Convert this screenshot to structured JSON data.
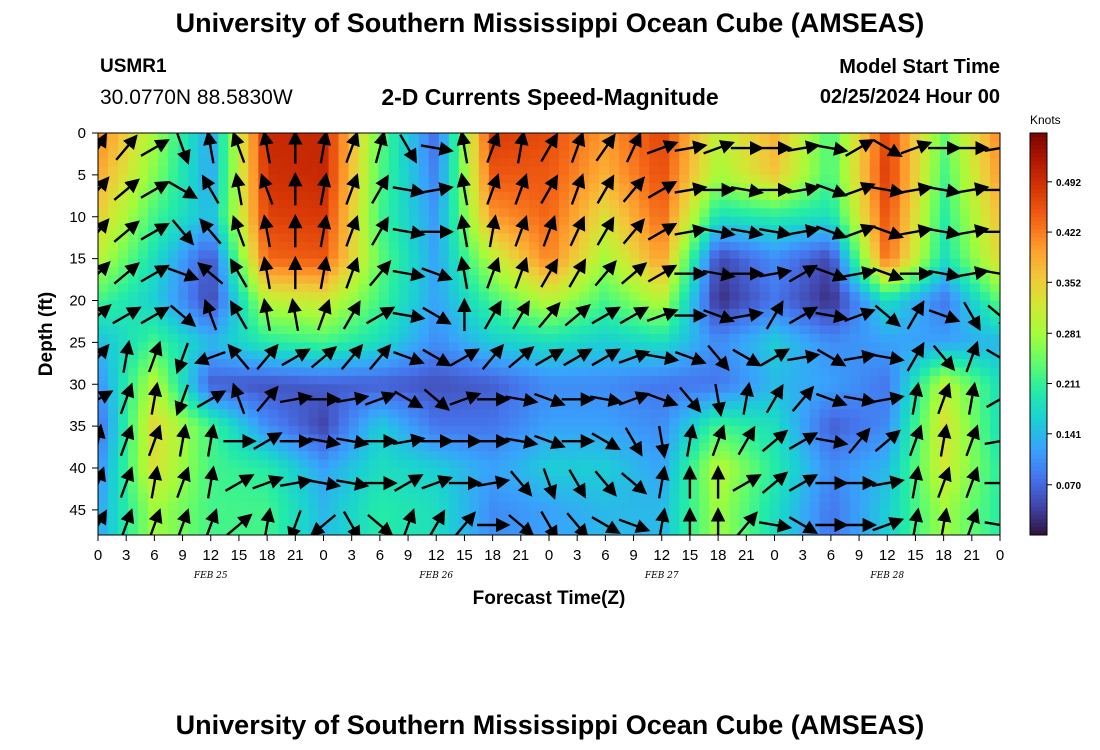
{
  "header": {
    "title": "University of Southern Mississippi Ocean Cube (AMSEAS)",
    "station": "USMR1",
    "coords": "30.0770N  88.5830W",
    "subtitle": "2-D Currents Speed-Magnitude",
    "model_start_label": "Model Start Time",
    "model_start_value": "02/25/2024 Hour 00"
  },
  "footer": {
    "title": "University of Southern Mississippi Ocean Cube (AMSEAS)"
  },
  "chart_data": {
    "type": "heatmap",
    "title": "2-D Currents Speed-Magnitude",
    "xlabel": "Forecast Time(Z)",
    "ylabel": "Depth (ft)",
    "x_tick_labels": [
      "0",
      "3",
      "6",
      "9",
      "12",
      "15",
      "18",
      "21",
      "0",
      "3",
      "6",
      "9",
      "12",
      "15",
      "18",
      "21",
      "0",
      "3",
      "6",
      "9",
      "12",
      "15",
      "18",
      "21",
      "0",
      "3",
      "6",
      "9",
      "12",
      "15",
      "18",
      "21",
      "0"
    ],
    "day_labels": [
      {
        "label": "FEB 25",
        "tick_index": 4
      },
      {
        "label": "FEB 26",
        "tick_index": 12
      },
      {
        "label": "FEB 27",
        "tick_index": 20
      },
      {
        "label": "FEB 28",
        "tick_index": 28
      }
    ],
    "y_ticks": [
      0,
      5,
      10,
      15,
      20,
      25,
      30,
      35,
      40,
      45
    ],
    "ylim": [
      0,
      48
    ],
    "xlim_hours": [
      0,
      96
    ],
    "colorbar": {
      "units": "Knots",
      "ticks": [
        0.07,
        0.141,
        0.211,
        0.281,
        0.352,
        0.422,
        0.492
      ],
      "tick_labels": [
        "0.070",
        "0.141",
        "0.211",
        "0.281",
        "0.352",
        "0.422",
        "0.492"
      ],
      "range": [
        0.0,
        0.56
      ],
      "colors": [
        "#30123b",
        "#4145ab",
        "#4675ed",
        "#39a2fc",
        "#1bcfd4",
        "#24eca6",
        "#61fc6c",
        "#a4fc3b",
        "#d1e834",
        "#f3c63a",
        "#fe9b2d",
        "#f36315",
        "#d93806",
        "#b11901",
        "#7a0402"
      ]
    },
    "depths_ft": [
      0,
      5,
      10,
      15,
      20,
      25,
      30,
      35,
      40,
      45
    ],
    "times_hours": [
      0,
      6,
      12,
      18,
      24,
      30,
      36,
      42,
      48,
      54,
      60,
      66,
      72,
      78,
      84,
      90,
      96
    ],
    "speed_knots": [
      [
        0.42,
        0.28,
        0.12,
        0.5,
        0.5,
        0.24,
        0.07,
        0.48,
        0.46,
        0.4,
        0.47,
        0.3,
        0.38,
        0.22,
        0.47,
        0.24,
        0.42
      ],
      [
        0.39,
        0.26,
        0.12,
        0.49,
        0.5,
        0.23,
        0.09,
        0.45,
        0.45,
        0.38,
        0.46,
        0.28,
        0.36,
        0.22,
        0.48,
        0.22,
        0.4
      ],
      [
        0.35,
        0.22,
        0.14,
        0.47,
        0.48,
        0.22,
        0.11,
        0.4,
        0.44,
        0.33,
        0.44,
        0.18,
        0.2,
        0.18,
        0.46,
        0.2,
        0.37
      ],
      [
        0.3,
        0.18,
        0.05,
        0.44,
        0.45,
        0.24,
        0.12,
        0.3,
        0.42,
        0.28,
        0.4,
        0.04,
        0.1,
        0.04,
        0.44,
        0.18,
        0.34
      ],
      [
        0.22,
        0.16,
        0.04,
        0.3,
        0.32,
        0.22,
        0.12,
        0.22,
        0.3,
        0.22,
        0.3,
        0.02,
        0.08,
        0.02,
        0.18,
        0.08,
        0.24
      ],
      [
        0.14,
        0.22,
        0.14,
        0.2,
        0.22,
        0.18,
        0.1,
        0.16,
        0.18,
        0.16,
        0.18,
        0.1,
        0.16,
        0.1,
        0.12,
        0.12,
        0.14
      ],
      [
        0.1,
        0.3,
        0.06,
        0.05,
        0.06,
        0.06,
        0.05,
        0.06,
        0.1,
        0.1,
        0.08,
        0.08,
        0.14,
        0.12,
        0.08,
        0.3,
        0.18
      ],
      [
        0.07,
        0.34,
        0.22,
        0.1,
        0.04,
        0.16,
        0.08,
        0.08,
        0.12,
        0.12,
        0.1,
        0.22,
        0.18,
        0.06,
        0.1,
        0.33,
        0.18
      ],
      [
        0.1,
        0.33,
        0.22,
        0.2,
        0.12,
        0.18,
        0.16,
        0.12,
        0.16,
        0.16,
        0.12,
        0.3,
        0.2,
        0.1,
        0.14,
        0.32,
        0.2
      ],
      [
        0.12,
        0.28,
        0.22,
        0.22,
        0.14,
        0.2,
        0.18,
        0.1,
        0.12,
        0.14,
        0.14,
        0.28,
        0.18,
        0.08,
        0.16,
        0.28,
        0.2
      ]
    ],
    "vector_times_hours": [
      0,
      3,
      6,
      9,
      12,
      15,
      18,
      21,
      24,
      27,
      30,
      33,
      36,
      39,
      42,
      45,
      48,
      51,
      54,
      57,
      60,
      63,
      66,
      69,
      72,
      75,
      78,
      81,
      84,
      87,
      90,
      93,
      96
    ],
    "vector_direction_deg": [
      [
        30,
        40,
        60,
        160,
        350,
        340,
        350,
        0,
        10,
        20,
        15,
        150,
        100,
        350,
        20,
        10,
        30,
        20,
        35,
        25,
        70,
        80,
        70,
        90,
        90,
        80,
        100,
        60,
        120,
        70,
        90,
        90,
        80
      ],
      [
        40,
        50,
        60,
        120,
        330,
        350,
        340,
        0,
        10,
        20,
        30,
        100,
        80,
        350,
        20,
        20,
        30,
        20,
        30,
        40,
        60,
        80,
        90,
        100,
        90,
        80,
        110,
        70,
        100,
        80,
        100,
        80,
        90
      ],
      [
        40,
        50,
        60,
        140,
        320,
        340,
        350,
        0,
        10,
        20,
        30,
        100,
        90,
        350,
        10,
        20,
        20,
        25,
        30,
        40,
        60,
        80,
        100,
        100,
        100,
        80,
        110,
        70,
        110,
        80,
        100,
        80,
        90
      ],
      [
        45,
        50,
        60,
        110,
        310,
        330,
        350,
        0,
        10,
        20,
        40,
        100,
        110,
        350,
        20,
        20,
        30,
        30,
        40,
        50,
        60,
        90,
        100,
        90,
        80,
        60,
        110,
        80,
        110,
        90,
        100,
        80,
        100
      ],
      [
        50,
        60,
        60,
        130,
        340,
        330,
        350,
        350,
        20,
        30,
        60,
        100,
        120,
        0,
        30,
        30,
        40,
        50,
        60,
        60,
        70,
        90,
        110,
        80,
        30,
        60,
        100,
        70,
        130,
        30,
        110,
        150,
        130
      ],
      [
        40,
        10,
        20,
        200,
        250,
        320,
        40,
        60,
        50,
        40,
        40,
        110,
        120,
        60,
        40,
        50,
        60,
        60,
        60,
        70,
        100,
        110,
        140,
        120,
        60,
        80,
        120,
        80,
        100,
        30,
        140,
        20,
        120
      ],
      [
        60,
        20,
        10,
        200,
        60,
        340,
        40,
        80,
        90,
        80,
        70,
        120,
        130,
        70,
        90,
        100,
        110,
        90,
        100,
        70,
        110,
        140,
        170,
        10,
        30,
        40,
        110,
        100,
        80,
        10,
        20,
        10,
        60
      ],
      [
        10,
        20,
        20,
        10,
        10,
        90,
        60,
        90,
        100,
        100,
        90,
        80,
        90,
        90,
        90,
        100,
        110,
        90,
        120,
        150,
        170,
        10,
        20,
        30,
        50,
        60,
        100,
        40,
        50,
        20,
        10,
        20,
        80
      ],
      [
        20,
        20,
        10,
        20,
        10,
        60,
        70,
        80,
        100,
        100,
        90,
        60,
        70,
        90,
        80,
        140,
        160,
        150,
        140,
        130,
        10,
        0,
        0,
        60,
        50,
        60,
        90,
        90,
        80,
        10,
        20,
        20,
        90
      ],
      [
        30,
        20,
        20,
        20,
        20,
        50,
        10,
        200,
        230,
        150,
        130,
        20,
        30,
        40,
        90,
        130,
        150,
        140,
        120,
        110,
        10,
        0,
        0,
        40,
        100,
        120,
        90,
        90,
        70,
        10,
        10,
        20,
        100
      ]
    ]
  }
}
